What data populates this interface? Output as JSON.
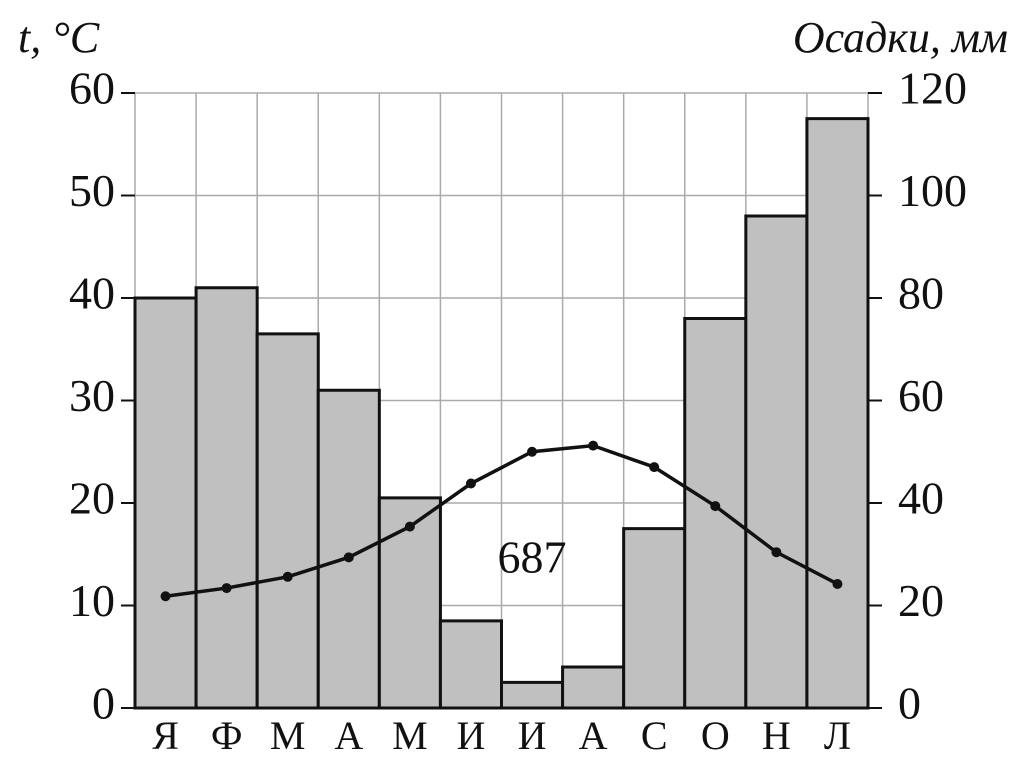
{
  "chart_data": {
    "type": "climate",
    "y_label": "t, °C",
    "y2_label": "Осадки, мм",
    "annotation": "687",
    "categories": [
      "Я",
      "Ф",
      "М",
      "А",
      "М",
      "И",
      "И",
      "А",
      "С",
      "О",
      "Н",
      "Л"
    ],
    "series": [
      {
        "name": "Осадки",
        "type": "bar",
        "axis": "y2",
        "color": "#c0c0c0",
        "values": [
          80,
          82,
          73,
          62,
          41,
          17,
          5,
          8,
          35,
          76,
          96,
          115
        ]
      },
      {
        "name": "t",
        "type": "line",
        "axis": "y",
        "color": "#111111",
        "values": [
          10.9,
          11.7,
          12.8,
          14.7,
          17.7,
          21.9,
          25,
          25.6,
          23.5,
          19.7,
          15.2,
          12.1
        ]
      }
    ],
    "ylim": [
      0,
      60
    ],
    "yticks": [
      0,
      10,
      20,
      30,
      40,
      50,
      60
    ],
    "y2lim": [
      0,
      120
    ],
    "y2ticks": [
      0,
      20,
      40,
      60,
      80,
      100,
      120
    ],
    "grid": true
  }
}
